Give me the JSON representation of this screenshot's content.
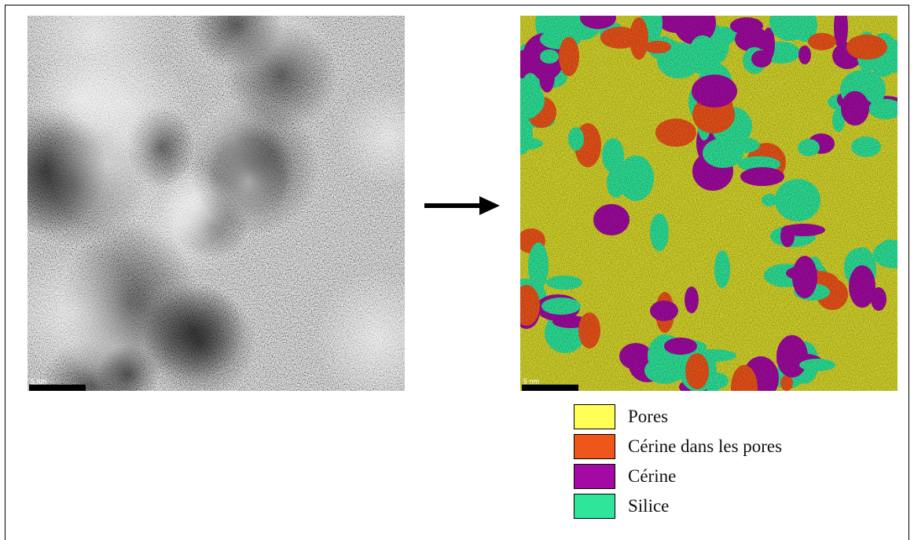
{
  "arrow": {
    "direction": "right"
  },
  "legend": {
    "items": [
      {
        "label": "Pores",
        "color": "#ffff55"
      },
      {
        "label": "Cérine dans les pores",
        "color": "#f0551a"
      },
      {
        "label": "Cérine",
        "color": "#a30aa3"
      },
      {
        "label": "Silice",
        "color": "#2ee69a"
      }
    ]
  },
  "scale_bars": {
    "tem_label": "5 nm",
    "segmented_label": "5 nm"
  },
  "colors": {
    "pores": "#ffff55",
    "cerine_in_pores": "#f0551a",
    "cerine": "#a30aa3",
    "silice": "#2ee69a"
  }
}
